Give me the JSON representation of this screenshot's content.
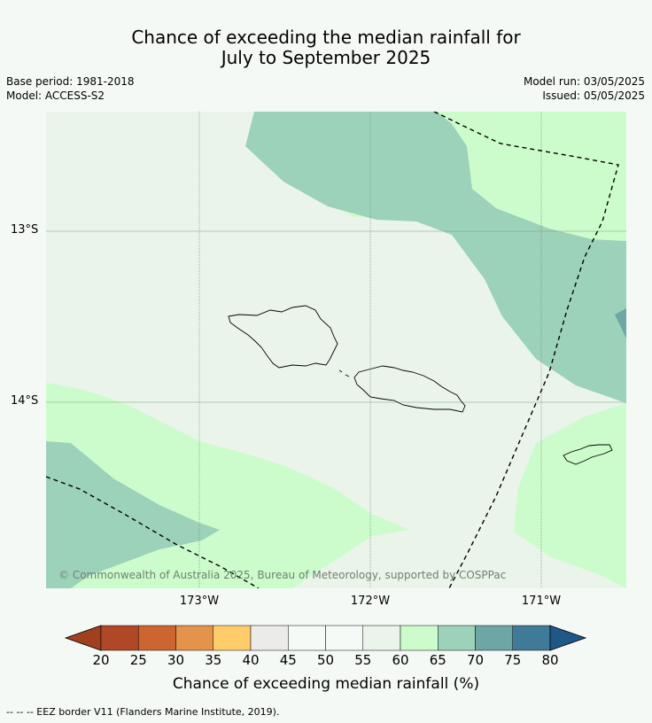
{
  "title_line1": "Chance of exceeding the median rainfall for",
  "title_line2": "July to September 2025",
  "meta": {
    "base_period": "Base period: 1981-2018",
    "model": "Model: ACCESS-S2",
    "model_run": "Model run: 03/05/2025",
    "issued": "Issued: 05/05/2025"
  },
  "map": {
    "lat_labels": [
      "13°S",
      "14°S"
    ],
    "lon_labels": [
      "173°W",
      "172°W",
      "171°W"
    ],
    "copyright": "© Commonwealth of Australia 2025, Bureau of Meteorology, supported by COSPPac",
    "colors": {
      "c45_50": "#f6faf6",
      "c55_60": "#eaf4ea",
      "c60_65": "#ccfccc",
      "c65_70": "#9dd2ba",
      "c70_75": "#6ea6a5"
    }
  },
  "colorbar": {
    "ticks": [
      "20",
      "25",
      "30",
      "35",
      "40",
      "45",
      "50",
      "55",
      "60",
      "65",
      "70",
      "75",
      "80"
    ],
    "colors": [
      "#b04726",
      "#cd6530",
      "#e3944a",
      "#fecd6a",
      "#ebebe9",
      "#f6faf6",
      "#f6faf6",
      "#eaf4ea",
      "#ccfccc",
      "#9dd2ba",
      "#6ea6a5",
      "#3f7a98"
    ],
    "under_color": "#a0401f",
    "over_color": "#1f5788",
    "label": "Chance of exceeding median rainfall (%)"
  },
  "footer": "--  --  -- EEZ border V11 (Flanders Marine Institute, 2019)."
}
